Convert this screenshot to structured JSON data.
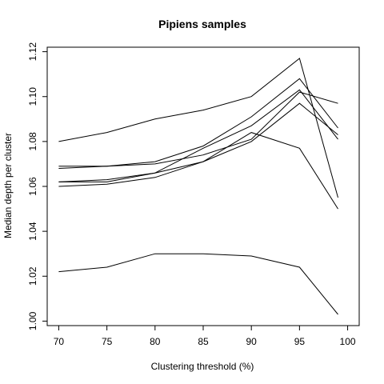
{
  "chart_data": {
    "type": "line",
    "title": "Pipiens samples",
    "xlabel": "Clustering threshold (%)",
    "ylabel": "Median depth per cluster",
    "xlim": [
      68.8,
      101.2
    ],
    "ylim": [
      0.998,
      1.122
    ],
    "x_ticks": [
      70,
      75,
      80,
      85,
      90,
      95,
      100
    ],
    "y_ticks": [
      1.0,
      1.02,
      1.04,
      1.06,
      1.08,
      1.1,
      1.12
    ],
    "y_tick_labels": [
      "1.00",
      "1.02",
      "1.04",
      "1.06",
      "1.08",
      "1.10",
      "1.12"
    ],
    "grid": false,
    "line_color": "#000000",
    "series": [
      {
        "x": [
          70,
          75,
          80,
          85,
          90,
          95,
          99
        ],
        "values": [
          1.08,
          1.084,
          1.09,
          1.094,
          1.1,
          1.117,
          1.055
        ]
      },
      {
        "x": [
          70,
          75,
          80,
          85,
          90,
          95,
          99
        ],
        "values": [
          1.069,
          1.069,
          1.071,
          1.078,
          1.091,
          1.108,
          1.086
        ]
      },
      {
        "x": [
          70,
          75,
          80,
          85,
          90,
          95,
          99
        ],
        "values": [
          1.068,
          1.069,
          1.07,
          1.074,
          1.081,
          1.102,
          1.097
        ]
      },
      {
        "x": [
          70,
          75,
          80,
          85,
          90,
          95,
          99
        ],
        "values": [
          1.062,
          1.063,
          1.066,
          1.077,
          1.087,
          1.103,
          1.081
        ]
      },
      {
        "x": [
          70,
          75,
          80,
          85,
          90,
          95,
          99
        ],
        "values": [
          1.062,
          1.062,
          1.066,
          1.071,
          1.08,
          1.097,
          1.083
        ]
      },
      {
        "x": [
          70,
          75,
          80,
          85,
          90,
          95,
          99
        ],
        "values": [
          1.06,
          1.061,
          1.064,
          1.071,
          1.084,
          1.077,
          1.05
        ]
      },
      {
        "x": [
          70,
          75,
          80,
          85,
          90,
          95,
          99
        ],
        "values": [
          1.022,
          1.024,
          1.03,
          1.03,
          1.029,
          1.024,
          1.003
        ]
      }
    ]
  }
}
